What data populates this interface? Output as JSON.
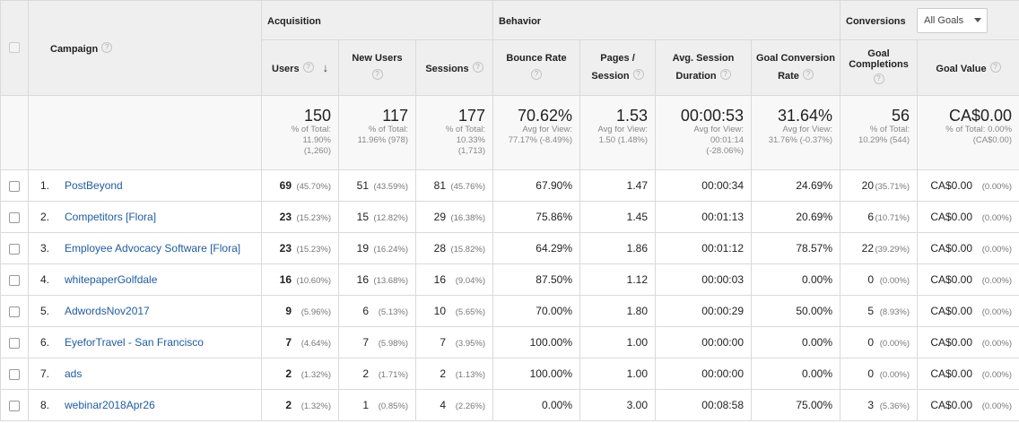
{
  "groups": {
    "acquisition": "Acquisition",
    "behavior": "Behavior",
    "conversions": "Conversions",
    "goal_select": "All Goals"
  },
  "columns": {
    "campaign": "Campaign",
    "users": "Users",
    "new_users": "New Users",
    "sessions": "Sessions",
    "bounce_rate": "Bounce Rate",
    "pages_line1": "Pages /",
    "pages_line2": "Session",
    "avg_session_line1": "Avg. Session",
    "avg_session_line2": "Duration",
    "goal_conv_line1": "Goal Conversion",
    "goal_conv_line2": "Rate",
    "goal_comp_line1": "Goal",
    "goal_comp_line2": "Completions",
    "goal_value": "Goal Value"
  },
  "totals": {
    "users": {
      "value": "150",
      "sub": [
        "% of Total:",
        "11.90%",
        "(1,260)"
      ]
    },
    "new_users": {
      "value": "117",
      "sub": [
        "% of Total:",
        "11.96% (978)"
      ]
    },
    "sessions": {
      "value": "177",
      "sub": [
        "% of Total:",
        "10.33%",
        "(1,713)"
      ]
    },
    "bounce_rate": {
      "value": "70.62%",
      "sub": [
        "Avg for View:",
        "77.17% (-8.49%)"
      ]
    },
    "pages": {
      "value": "1.53",
      "sub": [
        "Avg for View:",
        "1.50 (1.48%)"
      ]
    },
    "avg_session": {
      "value": "00:00:53",
      "sub": [
        "Avg for View:",
        "00:01:14",
        "(-28.06%)"
      ]
    },
    "goal_conv": {
      "value": "31.64%",
      "sub": [
        "Avg for View:",
        "31.76% (-0.37%)"
      ]
    },
    "goal_comp": {
      "value": "56",
      "sub": [
        "% of Total:",
        "10.29% (544)"
      ]
    },
    "goal_value": {
      "value": "CA$0.00",
      "sub": [
        "% of Total: 0.00%",
        "(CA$0.00)"
      ]
    }
  },
  "rows": [
    {
      "idx": "1.",
      "campaign": "PostBeyond",
      "users": "69",
      "users_pct": "(45.70%)",
      "new_users": "51",
      "new_users_pct": "(43.59%)",
      "sessions": "81",
      "sessions_pct": "(45.76%)",
      "bounce": "67.90%",
      "pages": "1.47",
      "duration": "00:00:34",
      "conv": "24.69%",
      "comp": "20",
      "comp_pct": "(35.71%)",
      "value": "CA$0.00",
      "value_pct": "(0.00%)"
    },
    {
      "idx": "2.",
      "campaign": "Competitors [Flora]",
      "users": "23",
      "users_pct": "(15.23%)",
      "new_users": "15",
      "new_users_pct": "(12.82%)",
      "sessions": "29",
      "sessions_pct": "(16.38%)",
      "bounce": "75.86%",
      "pages": "1.45",
      "duration": "00:01:13",
      "conv": "20.69%",
      "comp": "6",
      "comp_pct": "(10.71%)",
      "value": "CA$0.00",
      "value_pct": "(0.00%)"
    },
    {
      "idx": "3.",
      "campaign": "Employee Advocacy Software [Flora]",
      "users": "23",
      "users_pct": "(15.23%)",
      "new_users": "19",
      "new_users_pct": "(16.24%)",
      "sessions": "28",
      "sessions_pct": "(15.82%)",
      "bounce": "64.29%",
      "pages": "1.86",
      "duration": "00:01:12",
      "conv": "78.57%",
      "comp": "22",
      "comp_pct": "(39.29%)",
      "value": "CA$0.00",
      "value_pct": "(0.00%)"
    },
    {
      "idx": "4.",
      "campaign": "whitepaperGolfdale",
      "users": "16",
      "users_pct": "(10.60%)",
      "new_users": "16",
      "new_users_pct": "(13.68%)",
      "sessions": "16",
      "sessions_pct": "(9.04%)",
      "bounce": "87.50%",
      "pages": "1.12",
      "duration": "00:00:03",
      "conv": "0.00%",
      "comp": "0",
      "comp_pct": "(0.00%)",
      "value": "CA$0.00",
      "value_pct": "(0.00%)"
    },
    {
      "idx": "5.",
      "campaign": "AdwordsNov2017",
      "users": "9",
      "users_pct": "(5.96%)",
      "new_users": "6",
      "new_users_pct": "(5.13%)",
      "sessions": "10",
      "sessions_pct": "(5.65%)",
      "bounce": "70.00%",
      "pages": "1.80",
      "duration": "00:00:29",
      "conv": "50.00%",
      "comp": "5",
      "comp_pct": "(8.93%)",
      "value": "CA$0.00",
      "value_pct": "(0.00%)"
    },
    {
      "idx": "6.",
      "campaign": "EyeforTravel - San Francisco",
      "users": "7",
      "users_pct": "(4.64%)",
      "new_users": "7",
      "new_users_pct": "(5.98%)",
      "sessions": "7",
      "sessions_pct": "(3.95%)",
      "bounce": "100.00%",
      "pages": "1.00",
      "duration": "00:00:00",
      "conv": "0.00%",
      "comp": "0",
      "comp_pct": "(0.00%)",
      "value": "CA$0.00",
      "value_pct": "(0.00%)"
    },
    {
      "idx": "7.",
      "campaign": "ads",
      "users": "2",
      "users_pct": "(1.32%)",
      "new_users": "2",
      "new_users_pct": "(1.71%)",
      "sessions": "2",
      "sessions_pct": "(1.13%)",
      "bounce": "100.00%",
      "pages": "1.00",
      "duration": "00:00:00",
      "conv": "0.00%",
      "comp": "0",
      "comp_pct": "(0.00%)",
      "value": "CA$0.00",
      "value_pct": "(0.00%)"
    },
    {
      "idx": "8.",
      "campaign": "webinar2018Apr26",
      "users": "2",
      "users_pct": "(1.32%)",
      "new_users": "1",
      "new_users_pct": "(0.85%)",
      "sessions": "4",
      "sessions_pct": "(2.26%)",
      "bounce": "0.00%",
      "pages": "3.00",
      "duration": "00:08:58",
      "conv": "75.00%",
      "comp": "3",
      "comp_pct": "(5.36%)",
      "value": "CA$0.00",
      "value_pct": "(0.00%)"
    }
  ]
}
